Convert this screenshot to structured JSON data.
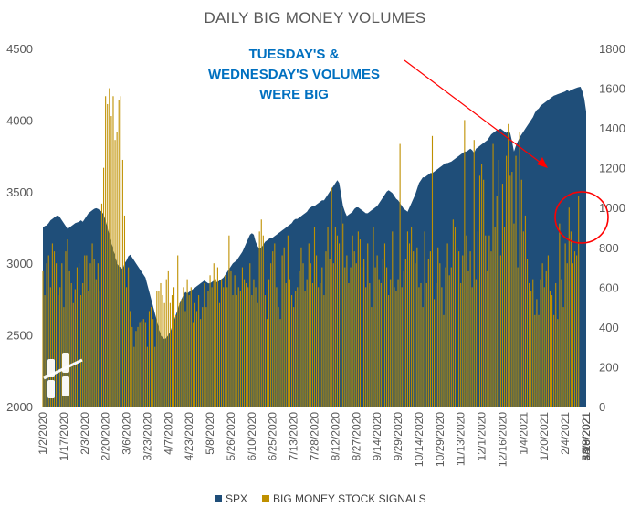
{
  "chart_data": {
    "type": "area+bar",
    "title": "DAILY BIG MONEY VOLUMES",
    "colors": {
      "spx": "#1f4e79",
      "signals": "#bf9000",
      "arrow": "#ff0000",
      "circle": "#ff0000",
      "annotation": "#0070c0"
    },
    "y_left": {
      "min": 2000,
      "max": 4500,
      "ticks": [
        "2000",
        "2500",
        "3000",
        "3500",
        "4000",
        "4500"
      ]
    },
    "y_right": {
      "min": 0,
      "max": 1800,
      "ticks": [
        "0",
        "200",
        "400",
        "600",
        "800",
        "1000",
        "1200",
        "1400",
        "1600",
        "1800"
      ]
    },
    "x_tick_labels": [
      "1/2/2020",
      "1/17/2020",
      "2/3/2020",
      "2/20/2020",
      "3/6/2020",
      "3/23/2020",
      "4/7/2020",
      "4/23/2020",
      "5/8/2020",
      "5/26/2020",
      "6/10/2020",
      "6/25/2020",
      "7/13/2020",
      "7/28/2020",
      "8/12/2020",
      "8/27/2020",
      "9/14/2020",
      "9/29/2020",
      "10/14/2020",
      "10/29/2020",
      "11/13/2020",
      "12/1/2020",
      "12/16/2020",
      "1/4/2021",
      "1/20/2021",
      "2/4/2021",
      "2/19/2021",
      "3/8/2021",
      "3/23/2021",
      "4/8/2021",
      "4/23/2021",
      "5/10/2021"
    ],
    "series": [
      {
        "name": "SPX",
        "kind": "area",
        "axis": "left",
        "points_per_tick": 11,
        "values": [
          3250,
          3260,
          3265,
          3280,
          3300,
          3310,
          3320,
          3330,
          3335,
          3320,
          3300,
          3280,
          3260,
          3240,
          3250,
          3260,
          3270,
          3280,
          3285,
          3290,
          3300,
          3290,
          3310,
          3330,
          3350,
          3360,
          3370,
          3380,
          3385,
          3380,
          3370,
          3360,
          3340,
          3300,
          3250,
          3200,
          3150,
          3100,
          3050,
          3000,
          2980,
          2970,
          2960,
          3000,
          3020,
          3050,
          3060,
          3040,
          3020,
          3000,
          2980,
          2960,
          2940,
          2920,
          2900,
          2850,
          2800,
          2750,
          2700,
          2650,
          2600,
          2550,
          2500,
          2480,
          2470,
          2480,
          2500,
          2520,
          2560,
          2600,
          2640,
          2680,
          2720,
          2750,
          2780,
          2800,
          2790,
          2800,
          2810,
          2820,
          2830,
          2840,
          2850,
          2860,
          2870,
          2880,
          2870,
          2860,
          2860,
          2870,
          2880,
          2870,
          2870,
          2880,
          2890,
          2900,
          2920,
          2940,
          2960,
          2980,
          3000,
          3010,
          3020,
          3040,
          3060,
          3080,
          3110,
          3140,
          3170,
          3200,
          3210,
          3200,
          3150,
          3120,
          3100,
          3110,
          3130,
          3150,
          3160,
          3170,
          3180,
          3180,
          3190,
          3200,
          3210,
          3220,
          3230,
          3240,
          3250,
          3260,
          3270,
          3280,
          3300,
          3310,
          3310,
          3320,
          3330,
          3340,
          3350,
          3360,
          3380,
          3390,
          3400,
          3400,
          3410,
          3420,
          3430,
          3440,
          3440,
          3460,
          3480,
          3500,
          3520,
          3540,
          3560,
          3580,
          3560,
          3480,
          3400,
          3360,
          3330,
          3340,
          3350,
          3360,
          3380,
          3390,
          3390,
          3380,
          3370,
          3360,
          3350,
          3350,
          3360,
          3370,
          3380,
          3390,
          3400,
          3420,
          3440,
          3460,
          3480,
          3500,
          3510,
          3500,
          3490,
          3470,
          3450,
          3440,
          3420,
          3400,
          3380,
          3370,
          3360,
          3390,
          3420,
          3450,
          3480,
          3520,
          3560,
          3580,
          3600,
          3600,
          3610,
          3620,
          3630,
          3630,
          3640,
          3650,
          3660,
          3670,
          3680,
          3690,
          3700,
          3700,
          3705,
          3710,
          3720,
          3730,
          3740,
          3750,
          3760,
          3770,
          3780,
          3780,
          3790,
          3800,
          3790,
          3770,
          3800,
          3810,
          3820,
          3830,
          3840,
          3850,
          3860,
          3880,
          3900,
          3910,
          3920,
          3930,
          3935,
          3940,
          3930,
          3920,
          3910,
          3920,
          3910,
          3850,
          3780,
          3820,
          3850,
          3880,
          3900,
          3920,
          3940,
          3960,
          3980,
          4000,
          4020,
          4050,
          4070,
          4080,
          4100,
          4110,
          4120,
          4130,
          4140,
          4150,
          4160,
          4170,
          4175,
          4180,
          4185,
          4190,
          4195,
          4200,
          4210,
          4200,
          4210,
          4215,
          4220,
          4225,
          4230,
          4232,
          4200,
          4150,
          4060
        ]
      },
      {
        "name": "BIG MONEY STOCK SIGNALS",
        "kind": "bar",
        "axis": "right",
        "points_per_tick": 11,
        "values": [
          680,
          560,
          720,
          760,
          600,
          820,
          780,
          720,
          560,
          600,
          720,
          500,
          780,
          840,
          680,
          620,
          520,
          590,
          700,
          720,
          560,
          620,
          760,
          760,
          580,
          720,
          820,
          740,
          640,
          720,
          580,
          1020,
          1200,
          1560,
          1520,
          1600,
          1460,
          1560,
          1340,
          1380,
          1540,
          1560,
          1240,
          960,
          600,
          700,
          480,
          400,
          300,
          380,
          400,
          420,
          430,
          440,
          420,
          300,
          480,
          500,
          440,
          300,
          580,
          580,
          620,
          560,
          520,
          640,
          680,
          520,
          560,
          600,
          460,
          760,
          520,
          540,
          600,
          480,
          640,
          560,
          600,
          420,
          520,
          480,
          560,
          440,
          500,
          620,
          500,
          580,
          660,
          600,
          720,
          640,
          700,
          520,
          640,
          600,
          660,
          600,
          860,
          680,
          560,
          660,
          560,
          600,
          580,
          700,
          640,
          620,
          600,
          720,
          560,
          640,
          600,
          520,
          880,
          940,
          860,
          560,
          440,
          640,
          720,
          780,
          820,
          600,
          500,
          440,
          760,
          800,
          620,
          860,
          640,
          560,
          500,
          580,
          600,
          680,
          800,
          720,
          580,
          640,
          820,
          720,
          620,
          900,
          760,
          600,
          620,
          700,
          560,
          780,
          900,
          740,
          1100,
          720,
          900,
          860,
          820,
          1000,
          920,
          700,
          760,
          620,
          700,
          860,
          780,
          720,
          880,
          840,
          700,
          740,
          600,
          820,
          620,
          500,
          900,
          700,
          760,
          640,
          620,
          740,
          820,
          700,
          560,
          640,
          880,
          600,
          580,
          640,
          1320,
          600,
          680,
          740,
          880,
          820,
          900,
          780,
          720,
          800,
          600,
          620,
          500,
          880,
          620,
          740,
          780,
          1360,
          540,
          620,
          800,
          720,
          600,
          460,
          700,
          820,
          660,
          700,
          940,
          900,
          800,
          780,
          620,
          760,
          1440,
          860,
          680,
          780,
          600,
          1340,
          640,
          880,
          1160,
          1220,
          1140,
          860,
          680,
          860,
          780,
          1320,
          900,
          1060,
          1240,
          760,
          1120,
          900,
          1260,
          1420,
          1160,
          1180,
          920,
          1260,
          700,
          1380,
          1140,
          880,
          960,
          740,
          620,
          580,
          640,
          460,
          540,
          460,
          640,
          720,
          600,
          680,
          760,
          580,
          560,
          460,
          620,
          440,
          920,
          640,
          500,
          820,
          720,
          1000,
          880,
          720,
          780,
          760,
          1060
        ]
      }
    ],
    "annotation": [
      "TUESDAY'S &",
      "WEDNESDAY'S VOLUMES",
      "WERE BIG"
    ],
    "legend": {
      "placement": "bottom",
      "entries": [
        "SPX",
        "BIG MONEY STOCK SIGNALS"
      ]
    },
    "grid": false
  }
}
